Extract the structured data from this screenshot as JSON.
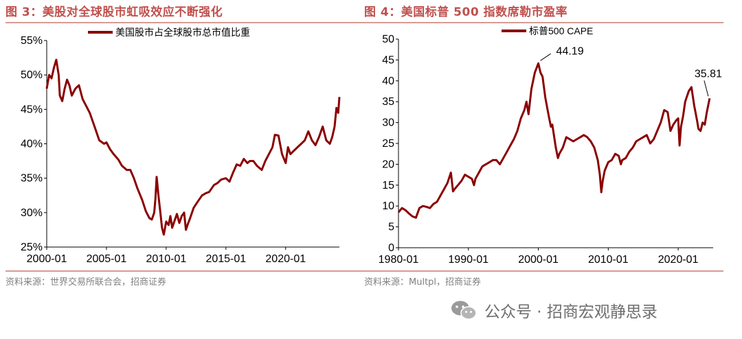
{
  "left": {
    "figure_title": "图 3：美股对全球股市虹吸效应不断强化",
    "source": "资料来源：世界交易所联合会，招商证券"
  },
  "right": {
    "figure_title": "图 4：美国标普 500 指数席勒市盈率",
    "source": "资料来源：Multpl，招商证券"
  },
  "watermark": {
    "text": "公众号 · 招商宏观静思录",
    "icon": "wechat-icon"
  },
  "colors": {
    "line": "#8b0000",
    "title": "#c0504d",
    "rule": "#d89a94",
    "source": "#808080"
  },
  "chart_data": [
    {
      "type": "line",
      "title": "",
      "xlabel": "",
      "ylabel": "",
      "legend": "top-center",
      "grid": false,
      "x_range": [
        2000.0,
        2024.5
      ],
      "ylim": [
        0.25,
        0.55
      ],
      "y_ticks": [
        "25%",
        "30%",
        "35%",
        "40%",
        "45%",
        "50%",
        "55%"
      ],
      "x_ticks": [
        {
          "label": "2000-01",
          "value": 2000.0
        },
        {
          "label": "2005-01",
          "value": 2005.0
        },
        {
          "label": "2010-01",
          "value": 2010.0
        },
        {
          "label": "2015-01",
          "value": 2015.0
        },
        {
          "label": "2020-01",
          "value": 2020.0
        }
      ],
      "series": [
        {
          "name": "美国股市占全球股市总市值比重",
          "x": [
            2000.0,
            2000.2,
            2000.4,
            2000.6,
            2000.8,
            2001.0,
            2001.1,
            2001.3,
            2001.5,
            2001.7,
            2001.9,
            2002.1,
            2002.4,
            2002.7,
            2003.0,
            2003.3,
            2003.6,
            2004.0,
            2004.4,
            2004.8,
            2005.0,
            2005.3,
            2005.6,
            2006.0,
            2006.3,
            2006.7,
            2007.0,
            2007.3,
            2007.6,
            2008.0,
            2008.3,
            2008.6,
            2008.8,
            2009.0,
            2009.1,
            2009.2,
            2009.35,
            2009.5,
            2009.65,
            2009.8,
            2010.0,
            2010.2,
            2010.35,
            2010.5,
            2010.7,
            2010.9,
            2011.1,
            2011.3,
            2011.5,
            2011.65,
            2011.85,
            2012.0,
            2012.3,
            2012.6,
            2013.0,
            2013.3,
            2013.6,
            2014.0,
            2014.3,
            2014.6,
            2015.0,
            2015.3,
            2015.6,
            2015.9,
            2016.2,
            2016.5,
            2016.8,
            2017.0,
            2017.3,
            2017.6,
            2018.0,
            2018.3,
            2018.6,
            2018.9,
            2019.1,
            2019.4,
            2019.7,
            2020.0,
            2020.2,
            2020.4,
            2020.7,
            2021.0,
            2021.3,
            2021.6,
            2021.9,
            2022.2,
            2022.5,
            2022.8,
            2023.1,
            2023.4,
            2023.7,
            2023.9,
            2024.1,
            2024.25,
            2024.4,
            2024.5
          ],
          "values": [
            0.48,
            0.5,
            0.495,
            0.51,
            0.522,
            0.5,
            0.47,
            0.462,
            0.48,
            0.493,
            0.485,
            0.47,
            0.48,
            0.485,
            0.465,
            0.455,
            0.445,
            0.425,
            0.405,
            0.4,
            0.402,
            0.392,
            0.385,
            0.377,
            0.368,
            0.362,
            0.362,
            0.35,
            0.335,
            0.318,
            0.302,
            0.292,
            0.29,
            0.3,
            0.32,
            0.352,
            0.325,
            0.302,
            0.278,
            0.268,
            0.287,
            0.282,
            0.295,
            0.278,
            0.288,
            0.298,
            0.285,
            0.295,
            0.3,
            0.275,
            0.285,
            0.292,
            0.307,
            0.315,
            0.325,
            0.328,
            0.33,
            0.34,
            0.343,
            0.348,
            0.35,
            0.345,
            0.358,
            0.37,
            0.368,
            0.378,
            0.372,
            0.375,
            0.375,
            0.368,
            0.362,
            0.375,
            0.385,
            0.395,
            0.413,
            0.412,
            0.385,
            0.372,
            0.395,
            0.385,
            0.39,
            0.395,
            0.4,
            0.405,
            0.418,
            0.405,
            0.398,
            0.41,
            0.425,
            0.405,
            0.4,
            0.41,
            0.425,
            0.452,
            0.445,
            0.468
          ]
        }
      ]
    },
    {
      "type": "line",
      "title": "",
      "xlabel": "",
      "ylabel": "",
      "legend": "top-center",
      "grid": false,
      "x_range": [
        1980.0,
        2025.0
      ],
      "ylim": [
        0,
        50
      ],
      "y_ticks": [
        "0",
        "5",
        "10",
        "15",
        "20",
        "25",
        "30",
        "35",
        "40",
        "45",
        "50"
      ],
      "x_ticks": [
        {
          "label": "1980-01",
          "value": 1980.0
        },
        {
          "label": "1990-01",
          "value": 1990.0
        },
        {
          "label": "2000-01",
          "value": 2000.0
        },
        {
          "label": "2010-01",
          "value": 2010.0
        },
        {
          "label": "2020-01",
          "value": 2020.0
        }
      ],
      "annotations": [
        {
          "text": "44.19",
          "x": 2000.0,
          "y": 44.19
        },
        {
          "text": "35.81",
          "x": 2024.5,
          "y": 35.81
        }
      ],
      "series": [
        {
          "name": "标普500 CAPE",
          "x": [
            1980.0,
            1980.5,
            1981.0,
            1981.5,
            1982.0,
            1982.5,
            1983.0,
            1983.5,
            1984.0,
            1984.5,
            1985.0,
            1985.5,
            1986.0,
            1986.5,
            1987.0,
            1987.5,
            1987.8,
            1988.0,
            1988.5,
            1989.0,
            1989.5,
            1990.0,
            1990.5,
            1990.8,
            1991.0,
            1991.5,
            1992.0,
            1992.5,
            1993.0,
            1993.5,
            1994.0,
            1994.5,
            1995.0,
            1995.5,
            1996.0,
            1996.5,
            1997.0,
            1997.5,
            1998.0,
            1998.3,
            1998.6,
            1999.0,
            1999.5,
            2000.0,
            2000.3,
            2000.6,
            2001.0,
            2001.5,
            2001.8,
            2002.0,
            2002.5,
            2002.8,
            2003.0,
            2003.5,
            2004.0,
            2004.5,
            2005.0,
            2005.5,
            2006.0,
            2006.5,
            2007.0,
            2007.5,
            2008.0,
            2008.5,
            2008.8,
            2009.0,
            2009.2,
            2009.5,
            2010.0,
            2010.5,
            2011.0,
            2011.5,
            2011.8,
            2012.0,
            2012.5,
            2013.0,
            2013.5,
            2014.0,
            2014.5,
            2015.0,
            2015.5,
            2016.0,
            2016.5,
            2017.0,
            2017.5,
            2018.0,
            2018.5,
            2018.9,
            2019.3,
            2019.7,
            2020.0,
            2020.2,
            2020.4,
            2020.7,
            2021.0,
            2021.5,
            2021.9,
            2022.3,
            2022.7,
            2022.9,
            2023.2,
            2023.5,
            2023.8,
            2024.1,
            2024.5
          ],
          "values": [
            8.5,
            9.5,
            9.0,
            8.2,
            7.5,
            7.2,
            9.5,
            10.0,
            9.8,
            9.5,
            10.5,
            11.0,
            12.5,
            14.0,
            15.5,
            18.0,
            13.5,
            14.0,
            15.0,
            16.0,
            17.5,
            17.0,
            16.5,
            15.0,
            16.5,
            18.0,
            19.5,
            20.0,
            20.5,
            21.0,
            21.0,
            20.0,
            21.5,
            23.0,
            24.5,
            26.0,
            28.0,
            31.0,
            33.0,
            35.0,
            32.0,
            38.0,
            42.0,
            44.19,
            42.0,
            41.0,
            36.0,
            31.5,
            29.0,
            29.5,
            24.0,
            21.5,
            22.5,
            24.0,
            26.5,
            26.0,
            25.5,
            26.0,
            26.5,
            27.0,
            26.5,
            25.5,
            24.0,
            21.0,
            17.5,
            13.3,
            16.0,
            18.5,
            20.5,
            21.0,
            22.5,
            22.0,
            20.0,
            21.0,
            21.5,
            23.0,
            24.0,
            25.5,
            26.0,
            26.5,
            27.0,
            25.0,
            26.0,
            28.0,
            30.0,
            33.0,
            32.5,
            28.0,
            29.5,
            30.5,
            31.0,
            24.5,
            29.0,
            31.5,
            35.0,
            37.5,
            38.5,
            34.0,
            30.5,
            28.5,
            28.0,
            30.0,
            29.5,
            32.5,
            35.81
          ]
        }
      ]
    }
  ]
}
